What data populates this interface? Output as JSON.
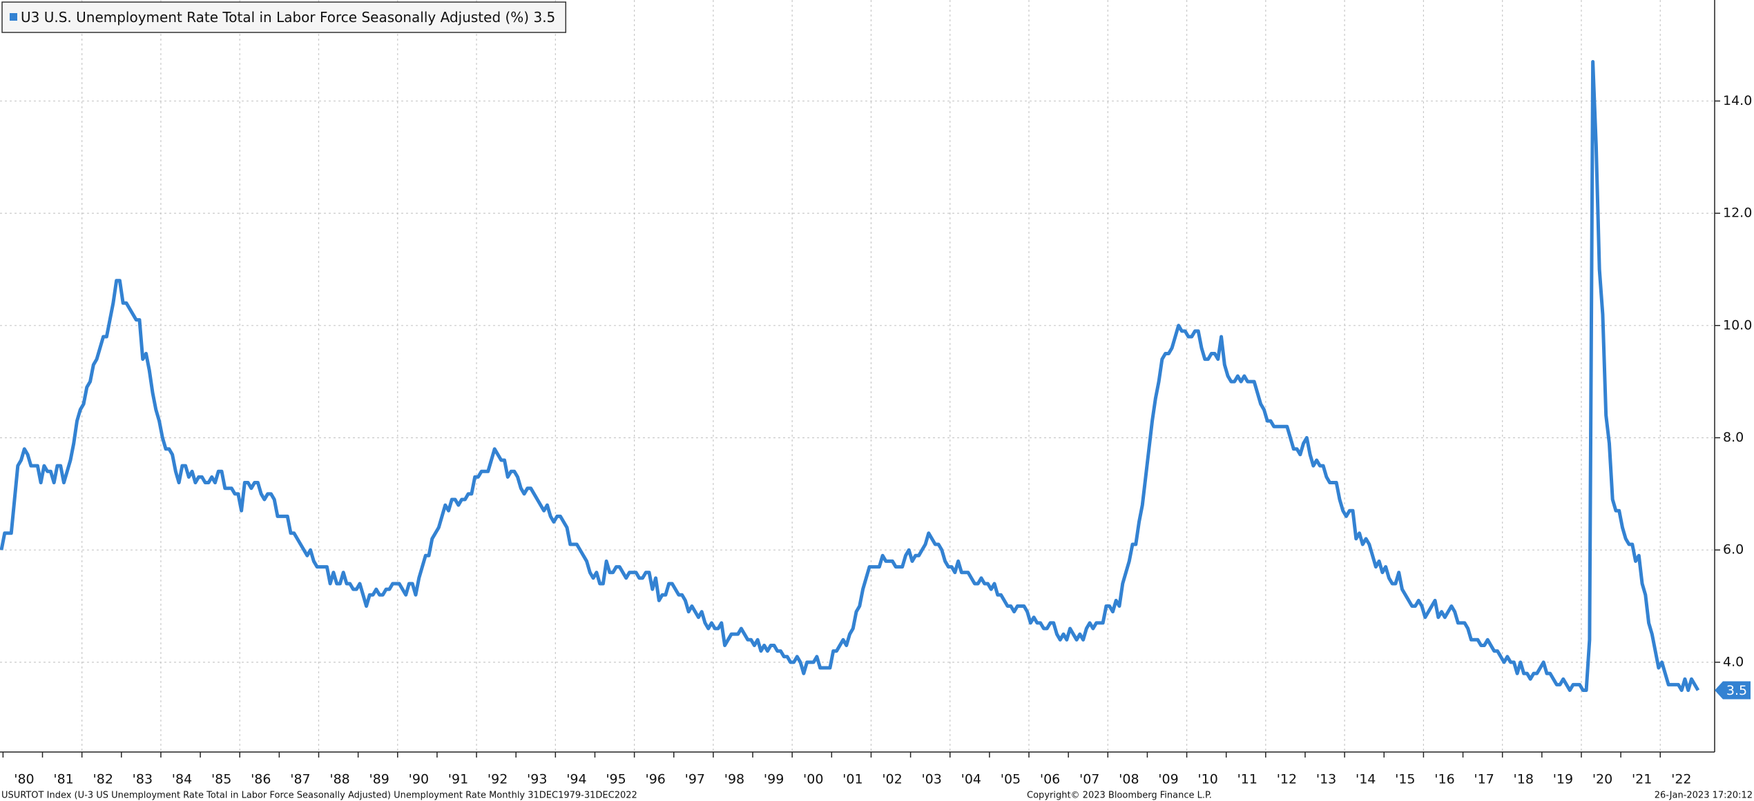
{
  "chart_data": {
    "type": "line",
    "categories": [
      null,
      null,
      null,
      null,
      null,
      null,
      null,
      "'80",
      null,
      null,
      null,
      null,
      null,
      null,
      null,
      null,
      null,
      null,
      null,
      "'81",
      null,
      null,
      null,
      null,
      null,
      null,
      null,
      null,
      null,
      null,
      null,
      "'82",
      null,
      null,
      null,
      null,
      null,
      null,
      null,
      null,
      null,
      null,
      null,
      "'83",
      null,
      null,
      null,
      null,
      null,
      null,
      null,
      null,
      null,
      null,
      null,
      "'84",
      null,
      null,
      null,
      null,
      null,
      null,
      null,
      null,
      null,
      null,
      null,
      "'85",
      null,
      null,
      null,
      null,
      null,
      null,
      null,
      null,
      null,
      null,
      null,
      "'86",
      null,
      null,
      null,
      null,
      null,
      null,
      null,
      null,
      null,
      null,
      null,
      "'87",
      null,
      null,
      null,
      null,
      null,
      null,
      null,
      null,
      null,
      null,
      null,
      "'88",
      null,
      null,
      null,
      null,
      null,
      null,
      null,
      null,
      null,
      null,
      null,
      "'89",
      null,
      null,
      null,
      null,
      null,
      null,
      null,
      null,
      null,
      null,
      null,
      "'90",
      null,
      null,
      null,
      null,
      null,
      null,
      null,
      null,
      null,
      null,
      null,
      "'91",
      null,
      null,
      null,
      null,
      null,
      null,
      null,
      null,
      null,
      null,
      null,
      "'92",
      null,
      null,
      null,
      null,
      null,
      null,
      null,
      null,
      null,
      null,
      null,
      "'93",
      null,
      null,
      null,
      null,
      null,
      null,
      null,
      null,
      null,
      null,
      null,
      "'94",
      null,
      null,
      null,
      null,
      null,
      null,
      null,
      null,
      null,
      null,
      null,
      "'95",
      null,
      null,
      null,
      null,
      null,
      null,
      null,
      null,
      null,
      null,
      null,
      "'96",
      null,
      null,
      null,
      null,
      null,
      null,
      null,
      null,
      null,
      null,
      null,
      "'97",
      null,
      null,
      null,
      null,
      null,
      null,
      null,
      null,
      null,
      null,
      null,
      "'98",
      null,
      null,
      null,
      null,
      null,
      null,
      null,
      null,
      null,
      null,
      null,
      "'99",
      null,
      null,
      null,
      null,
      null,
      null,
      null,
      null,
      null,
      null,
      null,
      "'00",
      null,
      null,
      null,
      null,
      null,
      null,
      null,
      null,
      null,
      null,
      null,
      "'01",
      null,
      null,
      null,
      null,
      null,
      null,
      null,
      null,
      null,
      null,
      null,
      "'02",
      null,
      null,
      null,
      null,
      null,
      null,
      null,
      null,
      null,
      null,
      null,
      "'03",
      null,
      null,
      null,
      null,
      null,
      null,
      null,
      null,
      null,
      null,
      null,
      "'04",
      null,
      null,
      null,
      null,
      null,
      null,
      null,
      null,
      null,
      null,
      null,
      "'05",
      null,
      null,
      null,
      null,
      null,
      null,
      null,
      null,
      null,
      null,
      null,
      "'06",
      null,
      null,
      null,
      null,
      null,
      null,
      null,
      null,
      null,
      null,
      null,
      "'07",
      null,
      null,
      null,
      null,
      null,
      null,
      null,
      null,
      null,
      null,
      null,
      "'08",
      null,
      null,
      null,
      null,
      null,
      null,
      null,
      null,
      null,
      null,
      null,
      "'09",
      null,
      null,
      null,
      null,
      null,
      null,
      null,
      null,
      null,
      null,
      null,
      "'10",
      null,
      null,
      null,
      null,
      null,
      null,
      null,
      null,
      null,
      null,
      null,
      "'11",
      null,
      null,
      null,
      null,
      null,
      null,
      null,
      null,
      null,
      null,
      null,
      "'12",
      null,
      null,
      null,
      null,
      null,
      null,
      null,
      null,
      null,
      null,
      null,
      "'13",
      null,
      null,
      null,
      null,
      null,
      null,
      null,
      null,
      null,
      null,
      null,
      "'14",
      null,
      null,
      null,
      null,
      null,
      null,
      null,
      null,
      null,
      null,
      null,
      "'15",
      null,
      null,
      null,
      null,
      null,
      null,
      null,
      null,
      null,
      null,
      null,
      "'16",
      null,
      null,
      null,
      null,
      null,
      null,
      null,
      null,
      null,
      null,
      null,
      "'17",
      null,
      null,
      null,
      null,
      null,
      null,
      null,
      null,
      null,
      null,
      null,
      "'18",
      null,
      null,
      null,
      null,
      null,
      null,
      null,
      null,
      null,
      null,
      null,
      "'19",
      null,
      null,
      null,
      null,
      null,
      null,
      null,
      null,
      null,
      null,
      null,
      "'20",
      null,
      null,
      null,
      null,
      null,
      null,
      null,
      null,
      null,
      null,
      null,
      "'21",
      null,
      null,
      null,
      null,
      null,
      null,
      null,
      null,
      null,
      null,
      null,
      "'22",
      null,
      null,
      null,
      null,
      null
    ],
    "series": [
      {
        "name": "U3 U.S. Unemployment Rate Total in Labor Force Seasonally Adjusted (%)",
        "color": "#3382d2",
        "values": [
          6.0,
          6.3,
          6.3,
          6.3,
          6.9,
          7.5,
          7.6,
          7.8,
          7.7,
          7.5,
          7.5,
          7.5,
          7.2,
          7.5,
          7.4,
          7.4,
          7.2,
          7.5,
          7.5,
          7.2,
          7.4,
          7.6,
          7.9,
          8.3,
          8.5,
          8.6,
          8.9,
          9.0,
          9.3,
          9.4,
          9.6,
          9.8,
          9.8,
          10.1,
          10.4,
          10.8,
          10.8,
          10.4,
          10.4,
          10.3,
          10.2,
          10.1,
          10.1,
          9.4,
          9.5,
          9.2,
          8.8,
          8.5,
          8.3,
          8.0,
          7.8,
          7.8,
          7.7,
          7.4,
          7.2,
          7.5,
          7.5,
          7.3,
          7.4,
          7.2,
          7.3,
          7.3,
          7.2,
          7.2,
          7.3,
          7.2,
          7.4,
          7.4,
          7.1,
          7.1,
          7.1,
          7.0,
          7.0,
          6.7,
          7.2,
          7.2,
          7.1,
          7.2,
          7.2,
          7.0,
          6.9,
          7.0,
          7.0,
          6.9,
          6.6,
          6.6,
          6.6,
          6.6,
          6.3,
          6.3,
          6.2,
          6.1,
          6.0,
          5.9,
          6.0,
          5.8,
          5.7,
          5.7,
          5.7,
          5.7,
          5.4,
          5.6,
          5.4,
          5.4,
          5.6,
          5.4,
          5.4,
          5.3,
          5.3,
          5.4,
          5.2,
          5.0,
          5.2,
          5.2,
          5.3,
          5.2,
          5.2,
          5.3,
          5.3,
          5.4,
          5.4,
          5.4,
          5.3,
          5.2,
          5.4,
          5.4,
          5.2,
          5.5,
          5.7,
          5.9,
          5.9,
          6.2,
          6.3,
          6.4,
          6.6,
          6.8,
          6.7,
          6.9,
          6.9,
          6.8,
          6.9,
          6.9,
          7.0,
          7.0,
          7.3,
          7.3,
          7.4,
          7.4,
          7.4,
          7.6,
          7.8,
          7.7,
          7.6,
          7.6,
          7.3,
          7.4,
          7.4,
          7.3,
          7.1,
          7.0,
          7.1,
          7.1,
          7.0,
          6.9,
          6.8,
          6.7,
          6.8,
          6.6,
          6.5,
          6.6,
          6.6,
          6.5,
          6.4,
          6.1,
          6.1,
          6.1,
          6.0,
          5.9,
          5.8,
          5.6,
          5.5,
          5.6,
          5.4,
          5.4,
          5.8,
          5.6,
          5.6,
          5.7,
          5.7,
          5.6,
          5.5,
          5.6,
          5.6,
          5.6,
          5.5,
          5.5,
          5.6,
          5.6,
          5.3,
          5.5,
          5.1,
          5.2,
          5.2,
          5.4,
          5.4,
          5.3,
          5.2,
          5.2,
          5.1,
          4.9,
          5.0,
          4.9,
          4.8,
          4.9,
          4.7,
          4.6,
          4.7,
          4.6,
          4.6,
          4.7,
          4.3,
          4.4,
          4.5,
          4.5,
          4.5,
          4.6,
          4.5,
          4.4,
          4.4,
          4.3,
          4.4,
          4.2,
          4.3,
          4.2,
          4.3,
          4.3,
          4.2,
          4.2,
          4.1,
          4.1,
          4.0,
          4.0,
          4.1,
          4.0,
          3.8,
          4.0,
          4.0,
          4.0,
          4.1,
          3.9,
          3.9,
          3.9,
          3.9,
          4.2,
          4.2,
          4.3,
          4.4,
          4.3,
          4.5,
          4.6,
          4.9,
          5.0,
          5.3,
          5.5,
          5.7,
          5.7,
          5.7,
          5.7,
          5.9,
          5.8,
          5.8,
          5.8,
          5.7,
          5.7,
          5.7,
          5.9,
          6.0,
          5.8,
          5.9,
          5.9,
          6.0,
          6.1,
          6.3,
          6.2,
          6.1,
          6.1,
          6.0,
          5.8,
          5.7,
          5.7,
          5.6,
          5.8,
          5.6,
          5.6,
          5.6,
          5.5,
          5.4,
          5.4,
          5.5,
          5.4,
          5.4,
          5.3,
          5.4,
          5.2,
          5.2,
          5.1,
          5.0,
          5.0,
          4.9,
          5.0,
          5.0,
          5.0,
          4.9,
          4.7,
          4.8,
          4.7,
          4.7,
          4.6,
          4.6,
          4.7,
          4.7,
          4.5,
          4.4,
          4.5,
          4.4,
          4.6,
          4.5,
          4.4,
          4.5,
          4.4,
          4.6,
          4.7,
          4.6,
          4.7,
          4.7,
          4.7,
          5.0,
          5.0,
          4.9,
          5.1,
          5.0,
          5.4,
          5.6,
          5.8,
          6.1,
          6.1,
          6.5,
          6.8,
          7.3,
          7.8,
          8.3,
          8.7,
          9.0,
          9.4,
          9.5,
          9.5,
          9.6,
          9.8,
          10.0,
          9.9,
          9.9,
          9.8,
          9.8,
          9.9,
          9.9,
          9.6,
          9.4,
          9.4,
          9.5,
          9.5,
          9.4,
          9.8,
          9.3,
          9.1,
          9.0,
          9.0,
          9.1,
          9.0,
          9.1,
          9.0,
          9.0,
          9.0,
          8.8,
          8.6,
          8.5,
          8.3,
          8.3,
          8.2,
          8.2,
          8.2,
          8.2,
          8.2,
          8.0,
          7.8,
          7.8,
          7.7,
          7.9,
          8.0,
          7.7,
          7.5,
          7.6,
          7.5,
          7.5,
          7.3,
          7.2,
          7.2,
          7.2,
          6.9,
          6.7,
          6.6,
          6.7,
          6.7,
          6.2,
          6.3,
          6.1,
          6.2,
          6.1,
          5.9,
          5.7,
          5.8,
          5.6,
          5.7,
          5.5,
          5.4,
          5.4,
          5.6,
          5.3,
          5.2,
          5.1,
          5.0,
          5.0,
          5.1,
          5.0,
          4.8,
          4.9,
          5.0,
          5.1,
          4.8,
          4.9,
          4.8,
          4.9,
          5.0,
          4.9,
          4.7,
          4.7,
          4.7,
          4.6,
          4.4,
          4.4,
          4.4,
          4.3,
          4.3,
          4.4,
          4.3,
          4.2,
          4.2,
          4.1,
          4.0,
          4.1,
          4.0,
          4.0,
          3.8,
          4.0,
          3.8,
          3.8,
          3.7,
          3.8,
          3.8,
          3.9,
          4.0,
          3.8,
          3.8,
          3.7,
          3.6,
          3.6,
          3.7,
          3.6,
          3.5,
          3.6,
          3.6,
          3.6,
          3.5,
          3.5,
          4.4,
          14.7,
          13.2,
          11.0,
          10.2,
          8.4,
          7.9,
          6.9,
          6.7,
          6.7,
          6.4,
          6.2,
          6.1,
          6.1,
          5.8,
          5.9,
          5.4,
          5.2,
          4.7,
          4.5,
          4.2,
          3.9,
          4.0,
          3.8,
          3.6,
          3.6,
          3.6,
          3.6,
          3.5,
          3.7,
          3.5,
          3.7,
          3.6,
          3.5
        ]
      }
    ],
    "ylim": [
      2.4,
      15.8
    ],
    "yticks": [
      {
        "value": 4,
        "label": "4.0"
      },
      {
        "value": 6,
        "label": "6.0"
      },
      {
        "value": 8,
        "label": "8.0"
      },
      {
        "value": 10,
        "label": "10.0"
      },
      {
        "value": 12,
        "label": "12.0"
      },
      {
        "value": 14,
        "label": "14.0"
      }
    ],
    "y_axis_side": "right",
    "grid": true,
    "legend": "top-left",
    "footnote": "USURTOT Index (U-3 US Unemployment Rate Total in Labor Force Seasonally Adjusted) Unemployment Rate  Monthly 31DEC1979-31DEC2022",
    "copyright": "Copyright© 2023 Bloomberg Finance L.P.",
    "timestamp": "26-Jan-2023 17:20:12"
  }
}
